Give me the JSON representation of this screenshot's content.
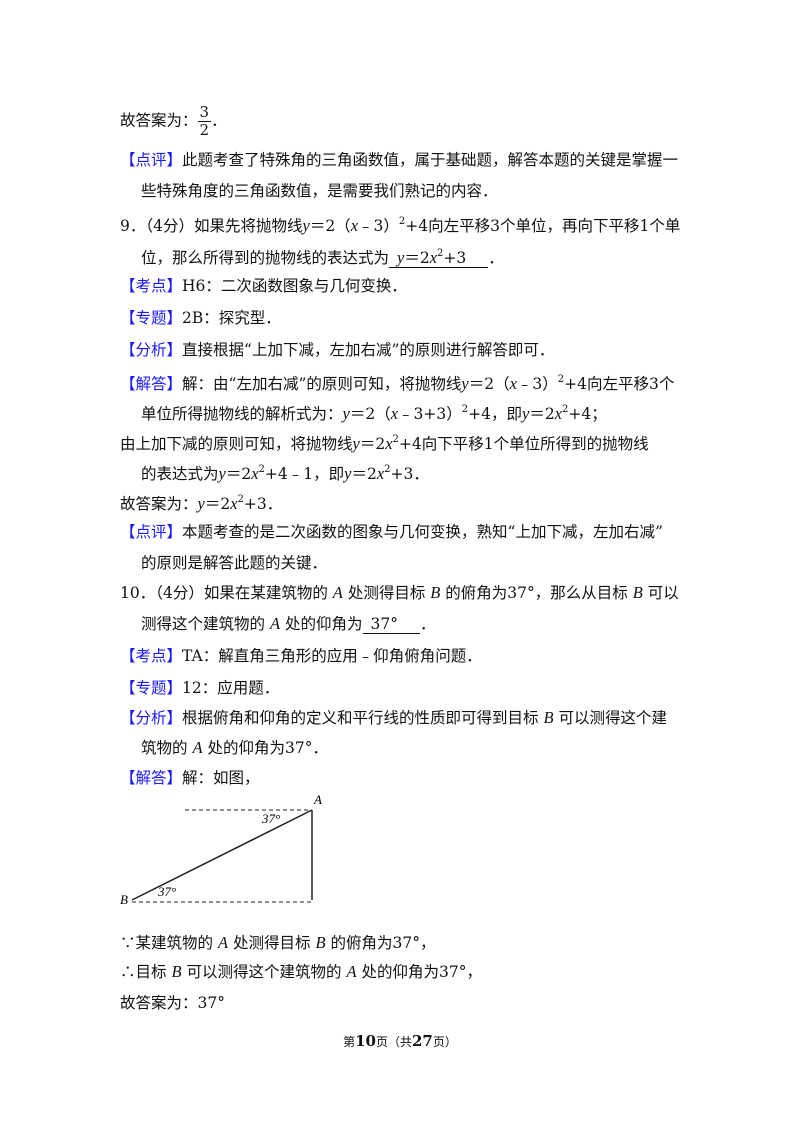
{
  "lines": [
    [
      "故答案为：",
      "3",
      "2",
      "．"
    ],
    [
      "【点评】",
      "此题考查了特殊角的三角函数值，属于基础题，解答本题的关键是掌握一"
    ],
    [
      "些特殊角度的三角函数值，是需要我们熟记的内容．"
    ],
    [
      "9．（4分）如果先将抛物线",
      "y",
      "＝2（",
      "x",
      "﹣3）",
      "2",
      "+4向左平移3个单位，再向下平移1个单"
    ],
    [
      "位，那么所得到的抛物线的表达式为",
      "y",
      "＝2",
      "x",
      "2",
      "+3",
      "．"
    ],
    [
      "【考点】",
      "H6：二次函数图象与几何变换．"
    ],
    [
      "【专题】",
      "2B：探究型．"
    ],
    [
      "【分析】",
      "直接根据“上加下减，左加右减”的原则进行解答即可．"
    ],
    [
      "【解答】",
      "解：由“左加右减”的原则可知，将抛物线",
      "y",
      "＝2（",
      "x",
      "﹣3）",
      "2",
      "+4向左平移3个"
    ],
    [
      "单位所得抛物线的解析式为：",
      "y",
      "＝2（",
      "x",
      "﹣3+3）",
      "2",
      "+4，即",
      "y",
      "＝2",
      "x",
      "2",
      "+4；"
    ],
    [
      "由上加下减的原则可知，将抛物线",
      "y",
      "＝2",
      "x",
      "2",
      "+4向下平移1个单位所得到的抛物线"
    ],
    [
      "的表达式为",
      "y",
      "＝2",
      "x",
      "2",
      "+4﹣1，即",
      "y",
      "＝2",
      "x",
      "2",
      "+3．"
    ],
    [
      "故答案为：",
      "y",
      "＝2",
      "x",
      "2",
      "+3．"
    ],
    [
      "【点评】",
      "本题考查的是二次函数的图象与几何变换，熟知“上加下减，左加右减”"
    ],
    [
      "的原则是解答此题的关键．"
    ],
    [
      "10．（4分）如果在某建筑物的",
      "A",
      "处测得目标",
      "B",
      "的俯角为37°，那么从目标",
      "B",
      "可以"
    ],
    [
      "测得这个建筑物的",
      "A",
      "处的仰角为",
      "37°",
      "．"
    ],
    [
      "【考点】",
      "TA：解直角三角形的应用﹣仰角俯角问题．"
    ],
    [
      "【专题】",
      "12：应用题．"
    ],
    [
      "【分析】",
      "根据俯角和仰角的定义和平行线的性质即可得到目标",
      "B",
      "可以测得这个建"
    ],
    [
      "筑物的",
      "A",
      "处的仰角为37°．"
    ],
    [
      "【解答】",
      "解：如图，"
    ],
    [
      "∵某建筑物的",
      "A",
      "处测得目标",
      "B",
      "的俯角为37°，"
    ],
    [
      "∴目标",
      "B",
      "可以测得这个建筑物的",
      "A",
      "处的仰角为37°，"
    ],
    [
      "故答案为：37°"
    ]
  ],
  "figure": {
    "labels": [
      "A",
      "37°",
      "B",
      "37°"
    ]
  },
  "footer": [
    "第",
    "10",
    "页（共",
    "27",
    "页）"
  ]
}
